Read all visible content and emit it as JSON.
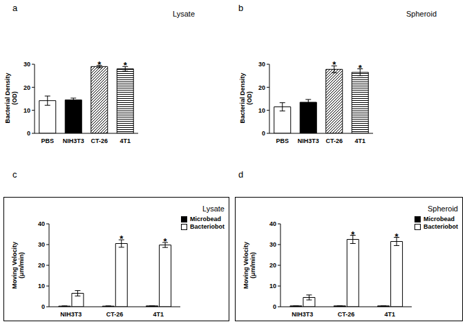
{
  "chart_data": [
    {
      "type": "bar",
      "title": "a",
      "subtitle": "Lysate",
      "y_label": "Bacterial Density (OD)",
      "categories": [
        "PBS",
        "NIH3T3",
        "CT-26",
        "4T1"
      ],
      "values": [
        14.2,
        14.5,
        29,
        28
      ],
      "errors": [
        2,
        0.8,
        0.5,
        1
      ],
      "colors": [
        "#ffffff",
        "#000000",
        "#000000",
        "#000000"
      ],
      "ylim": [
        0,
        30
      ],
      "yticks": [
        0,
        10,
        20,
        30
      ],
      "annotations": [
        {
          "category": "CT-26",
          "text": "*"
        },
        {
          "category": "4T1",
          "text": "*"
        }
      ]
    },
    {
      "type": "bar",
      "title": "b",
      "subtitle": "Spheroid",
      "y_label": "Bacterial Density (OD)",
      "categories": [
        "PBS",
        "NIH3T3",
        "CT-26",
        "4T1"
      ],
      "values": [
        11.5,
        13.5,
        27.8,
        26.5
      ],
      "errors": [
        1.8,
        1.2,
        1.5,
        1.5
      ],
      "colors": [
        "#ffffff",
        "#000000",
        "#000000",
        "#000000"
      ],
      "ylim": [
        0,
        30
      ],
      "yticks": [
        0,
        10,
        20,
        30
      ],
      "annotations": [
        {
          "category": "CT-26",
          "text": "*"
        },
        {
          "category": "4T1",
          "text": "*"
        }
      ]
    },
    {
      "type": "bar",
      "title": "c",
      "subtitle": "Lysate",
      "y_label": "Moving Velocity (μm/min)",
      "categories": [
        "NIH3T3",
        "CT-26",
        "4T1"
      ],
      "series": [
        {
          "name": "Microbead",
          "color": "#000000",
          "values": [
            0.3,
            0.3,
            0.4
          ],
          "errors": [
            0.1,
            0.1,
            0.1
          ]
        },
        {
          "name": "Bacteriobot",
          "color": "#ffffff",
          "values": [
            6.5,
            30.5,
            29.8
          ],
          "errors": [
            1.3,
            1.8,
            1.2
          ]
        }
      ],
      "ylim": [
        0,
        40
      ],
      "yticks": [
        0,
        10,
        20,
        30,
        40
      ],
      "legend": "upper right",
      "annotations": [
        {
          "category": "CT-26",
          "series": "Bacteriobot",
          "text": "*"
        },
        {
          "category": "4T1",
          "series": "Bacteriobot",
          "text": "*"
        }
      ]
    },
    {
      "type": "bar",
      "title": "d",
      "subtitle": "Spheroid",
      "y_label": "Moving Velocity (μm/min)",
      "categories": [
        "NIH3T3",
        "CT-26",
        "4T1"
      ],
      "series": [
        {
          "name": "Microbead",
          "color": "#000000",
          "values": [
            0.4,
            0.4,
            0.4
          ],
          "errors": [
            0.1,
            0.1,
            0.1
          ]
        },
        {
          "name": "Bacteriobot",
          "color": "#ffffff",
          "values": [
            4.5,
            32.5,
            31.5
          ],
          "errors": [
            1.2,
            2,
            2
          ]
        }
      ],
      "ylim": [
        0,
        40
      ],
      "yticks": [
        0,
        10,
        20,
        30,
        40
      ],
      "legend": "upper right",
      "annotations": [
        {
          "category": "CT-26",
          "series": "Bacteriobot",
          "text": "*"
        },
        {
          "category": "4T1",
          "series": "Bacteriobot",
          "text": "*"
        }
      ]
    }
  ]
}
